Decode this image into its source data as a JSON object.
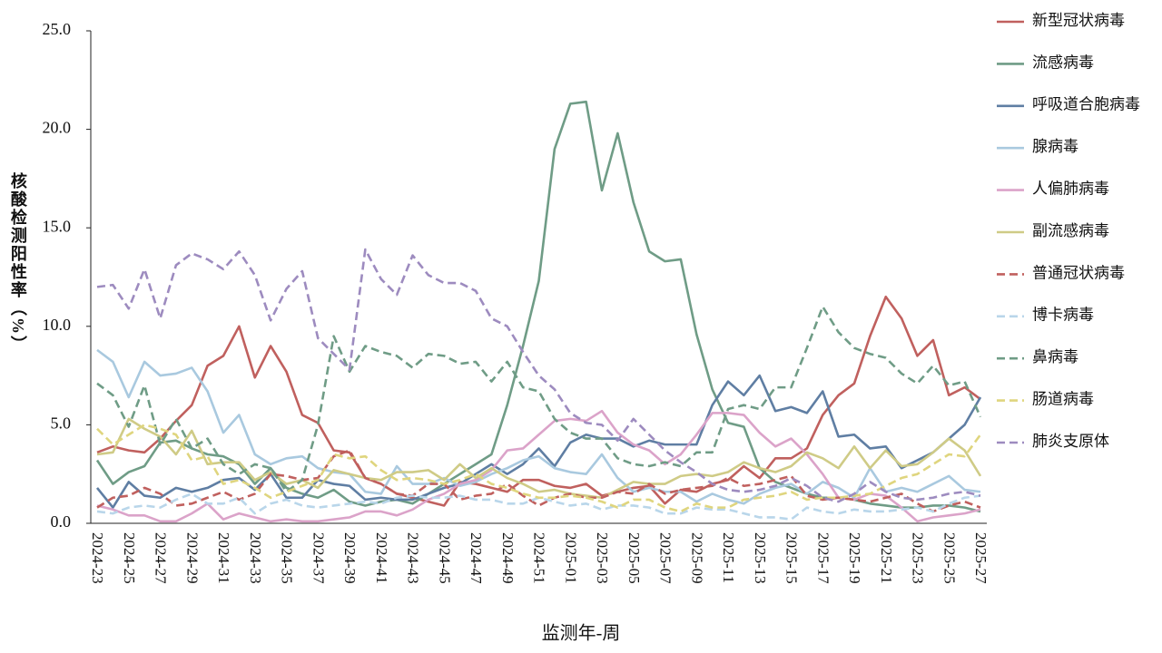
{
  "chart_data": {
    "type": "line",
    "x_label": "监测年-周",
    "y_label": "核酸检测阳性率（%）",
    "categories": [
      "2024-23",
      null,
      "2024-25",
      null,
      "2024-27",
      null,
      "2024-29",
      null,
      "2024-31",
      null,
      "2024-33",
      null,
      "2024-35",
      null,
      "2024-37",
      null,
      "2024-39",
      null,
      "2024-41",
      null,
      "2024-43",
      null,
      "2024-45",
      null,
      "2024-47",
      null,
      "2024-49",
      null,
      "2024-51",
      null,
      "2025-01",
      null,
      "2025-03",
      null,
      "2025-05",
      null,
      "2025-07",
      null,
      "2025-09",
      null,
      "2025-11",
      null,
      "2025-13",
      null,
      "2025-15",
      null,
      "2025-17",
      null,
      "2025-19",
      null,
      "2025-21",
      null,
      "2025-23",
      null,
      "2025-25",
      null,
      "2025-27"
    ],
    "ylim": [
      0,
      25
    ],
    "yticks": [
      {
        "value": 0,
        "label": "0.0"
      },
      {
        "value": 5,
        "label": "5.0"
      },
      {
        "value": 10,
        "label": "10.0"
      },
      {
        "value": 15,
        "label": "15.0"
      },
      {
        "value": 20,
        "label": "20.0"
      },
      {
        "value": 25,
        "label": "25.0"
      }
    ],
    "grid": false,
    "legend": "right",
    "series": [
      {
        "name": "新型冠状病毒",
        "color": "#c0605e",
        "style": "solid",
        "values": [
          3.6,
          3.9,
          3.7,
          3.6,
          4.3,
          5.2,
          6.0,
          8.0,
          8.5,
          10.0,
          7.4,
          9.0,
          7.7,
          5.5,
          5.1,
          3.7,
          3.6,
          2.3,
          2.0,
          1.5,
          1.3,
          1.1,
          0.9,
          2.1,
          2.0,
          1.8,
          1.6,
          2.2,
          2.2,
          1.9,
          1.8,
          2.0,
          1.4,
          1.6,
          1.8,
          1.9,
          1.0,
          1.7,
          1.6,
          2.0,
          2.2,
          2.9,
          2.3,
          3.3,
          3.3,
          3.8,
          5.5,
          6.5,
          7.1,
          9.5,
          11.5,
          10.4,
          8.5,
          9.3,
          6.5,
          6.9,
          6.3
        ]
      },
      {
        "name": "流感病毒",
        "color": "#6f9c86",
        "style": "solid",
        "values": [
          3.2,
          2.0,
          2.6,
          2.9,
          4.1,
          4.2,
          3.8,
          3.5,
          3.4,
          3.0,
          2.0,
          2.8,
          1.8,
          1.5,
          1.3,
          1.7,
          1.1,
          0.9,
          1.1,
          1.2,
          1.0,
          1.5,
          2.0,
          2.5,
          3.0,
          3.5,
          6.0,
          9.0,
          12.3,
          19.0,
          21.3,
          21.4,
          16.9,
          19.8,
          16.3,
          13.8,
          13.3,
          13.4,
          9.6,
          6.8,
          5.1,
          4.9,
          2.8,
          2.1,
          1.8,
          1.5,
          1.3,
          1.3,
          1.2,
          1.0,
          0.9,
          0.8,
          0.8,
          0.9,
          0.9,
          0.8,
          0.6
        ]
      },
      {
        "name": "呼吸道合胞病毒",
        "color": "#5f7ea3",
        "style": "solid",
        "values": [
          1.8,
          0.8,
          2.1,
          1.4,
          1.3,
          1.8,
          1.6,
          1.8,
          2.2,
          2.3,
          1.7,
          2.5,
          1.3,
          1.3,
          2.2,
          2.0,
          1.9,
          1.2,
          1.3,
          1.2,
          1.2,
          1.5,
          1.8,
          2.0,
          2.5,
          3.0,
          2.5,
          3.0,
          3.8,
          2.9,
          4.1,
          4.5,
          4.3,
          4.3,
          3.9,
          4.2,
          4.0,
          4.0,
          4.0,
          6.0,
          7.2,
          6.5,
          7.5,
          5.7,
          5.9,
          5.6,
          6.7,
          4.4,
          4.5,
          3.8,
          3.9,
          2.8,
          3.2,
          3.6,
          4.3,
          5.0,
          6.4
        ]
      },
      {
        "name": "腺病毒",
        "color": "#a9c9df",
        "style": "solid",
        "values": [
          8.8,
          8.2,
          6.4,
          8.2,
          7.5,
          7.6,
          7.9,
          6.7,
          4.6,
          5.5,
          3.5,
          3.0,
          3.3,
          3.4,
          2.8,
          2.6,
          2.5,
          1.6,
          1.5,
          2.9,
          2.0,
          2.0,
          2.3,
          1.9,
          2.1,
          2.5,
          2.8,
          3.2,
          3.4,
          2.8,
          2.6,
          2.5,
          3.5,
          2.3,
          1.6,
          1.8,
          1.6,
          1.6,
          1.1,
          1.5,
          1.2,
          1.0,
          1.5,
          1.8,
          2.0,
          1.5,
          2.1,
          1.8,
          1.3,
          2.8,
          1.6,
          1.8,
          1.6,
          2.0,
          2.4,
          1.7,
          1.6
        ]
      },
      {
        "name": "人偏肺病毒",
        "color": "#dba3c9",
        "style": "solid",
        "values": [
          0.9,
          0.7,
          0.4,
          0.4,
          0.1,
          0.1,
          0.5,
          1.0,
          0.2,
          0.5,
          0.3,
          0.1,
          0.2,
          0.1,
          0.1,
          0.2,
          0.3,
          0.6,
          0.6,
          0.4,
          0.7,
          1.2,
          1.5,
          2.0,
          2.2,
          2.7,
          3.7,
          3.8,
          4.5,
          5.2,
          5.3,
          5.2,
          5.7,
          4.6,
          4.0,
          3.7,
          3.0,
          3.5,
          4.5,
          5.6,
          5.6,
          5.5,
          4.6,
          3.9,
          4.3,
          3.5,
          2.5,
          1.3,
          1.2,
          1.5,
          1.4,
          0.8,
          0.1,
          0.3,
          0.4,
          0.5,
          0.7
        ]
      },
      {
        "name": "副流感病毒",
        "color": "#cfcb86",
        "style": "solid",
        "values": [
          3.5,
          3.6,
          5.3,
          4.8,
          4.4,
          3.5,
          4.7,
          3.0,
          3.1,
          3.1,
          2.2,
          2.6,
          2.0,
          2.2,
          1.8,
          2.7,
          2.5,
          2.3,
          2.2,
          2.6,
          2.6,
          2.7,
          2.2,
          3.0,
          2.3,
          2.8,
          2.3,
          2.0,
          1.6,
          1.7,
          1.5,
          1.4,
          1.3,
          1.7,
          2.1,
          2.0,
          2.0,
          2.4,
          2.5,
          2.4,
          2.6,
          3.1,
          2.8,
          2.6,
          2.9,
          3.6,
          3.3,
          2.8,
          3.9,
          2.8,
          3.7,
          2.9,
          3.0,
          3.6,
          4.3,
          3.7,
          2.4
        ]
      },
      {
        "name": "普通冠状病毒",
        "color": "#c0605e",
        "style": "dashed",
        "values": [
          0.8,
          1.3,
          1.4,
          1.8,
          1.5,
          0.9,
          1.0,
          1.3,
          1.6,
          1.2,
          1.5,
          2.5,
          2.4,
          2.2,
          2.3,
          3.4,
          3.7,
          2.3,
          2.0,
          1.5,
          1.4,
          2.0,
          2.0,
          1.2,
          1.4,
          1.5,
          2.0,
          1.4,
          0.9,
          1.3,
          1.5,
          1.3,
          1.3,
          1.6,
          1.5,
          2.0,
          1.5,
          1.7,
          1.8,
          1.9,
          2.3,
          1.9,
          2.0,
          2.2,
          2.4,
          1.4,
          1.2,
          1.3,
          1.2,
          1.1,
          1.3,
          1.5,
          1.0,
          0.6,
          0.9,
          1.1,
          0.8
        ]
      },
      {
        "name": "博卡病毒",
        "color": "#b9d6ea",
        "style": "dashed",
        "values": [
          0.6,
          0.5,
          0.8,
          0.9,
          0.8,
          1.2,
          1.5,
          1.0,
          1.0,
          1.3,
          0.5,
          1.0,
          1.2,
          0.9,
          0.8,
          0.9,
          1.0,
          1.1,
          1.0,
          1.3,
          1.4,
          1.3,
          1.3,
          1.4,
          1.2,
          1.2,
          1.0,
          1.0,
          1.3,
          1.1,
          0.9,
          1.0,
          0.7,
          0.9,
          0.9,
          0.8,
          0.5,
          0.5,
          0.8,
          0.7,
          0.7,
          0.5,
          0.3,
          0.3,
          0.2,
          0.8,
          0.6,
          0.5,
          0.7,
          0.6,
          0.6,
          0.7,
          0.8,
          0.6,
          1.0,
          1.3,
          1.4
        ]
      },
      {
        "name": "鼻病毒",
        "color": "#6f9c86",
        "style": "dashed",
        "values": [
          7.1,
          6.5,
          4.9,
          7.0,
          4.0,
          5.3,
          3.8,
          4.3,
          3.0,
          2.5,
          3.0,
          2.8,
          1.6,
          2.2,
          5.0,
          9.5,
          7.7,
          9.0,
          8.7,
          8.5,
          7.9,
          8.6,
          8.5,
          8.1,
          8.2,
          7.2,
          8.2,
          6.9,
          6.7,
          5.3,
          4.6,
          4.3,
          4.3,
          3.3,
          3.0,
          2.9,
          3.1,
          2.9,
          3.6,
          3.6,
          5.8,
          6.0,
          5.8,
          6.9,
          6.9,
          8.9,
          11.0,
          9.7,
          8.9,
          8.6,
          8.4,
          7.6,
          7.1,
          8.0,
          7.0,
          7.2,
          5.4
        ]
      },
      {
        "name": "肠道病毒",
        "color": "#dfd57e",
        "style": "dashed",
        "values": [
          4.8,
          4.0,
          4.5,
          5.0,
          4.8,
          4.5,
          3.2,
          3.4,
          2.0,
          2.2,
          1.8,
          1.3,
          1.6,
          1.9,
          2.2,
          3.5,
          3.3,
          3.4,
          2.7,
          2.2,
          2.3,
          2.2,
          2.0,
          2.2,
          2.5,
          2.0,
          1.8,
          1.5,
          1.3,
          1.3,
          1.4,
          1.3,
          1.1,
          0.8,
          1.2,
          1.2,
          0.8,
          0.6,
          1.0,
          0.8,
          0.8,
          1.2,
          1.3,
          1.4,
          1.6,
          1.2,
          1.3,
          1.3,
          1.4,
          1.5,
          1.9,
          2.3,
          2.5,
          3.0,
          3.5,
          3.4,
          4.5
        ]
      },
      {
        "name": "肺炎支原体",
        "color": "#9d8bbf",
        "style": "dashed",
        "values": [
          12.0,
          12.1,
          10.9,
          12.9,
          10.4,
          13.1,
          13.7,
          13.4,
          12.9,
          13.8,
          12.6,
          10.3,
          11.9,
          12.8,
          9.4,
          8.6,
          7.8,
          13.9,
          12.4,
          11.6,
          13.6,
          12.6,
          12.2,
          12.2,
          11.8,
          10.4,
          10.0,
          8.7,
          7.5,
          6.8,
          5.6,
          5.1,
          5.0,
          4.2,
          5.3,
          4.5,
          3.7,
          3.1,
          2.6,
          2.0,
          1.7,
          1.6,
          1.7,
          1.9,
          2.3,
          1.9,
          1.3,
          1.1,
          1.5,
          2.1,
          1.6,
          1.3,
          1.2,
          1.3,
          1.5,
          1.6,
          1.4
        ]
      }
    ]
  }
}
